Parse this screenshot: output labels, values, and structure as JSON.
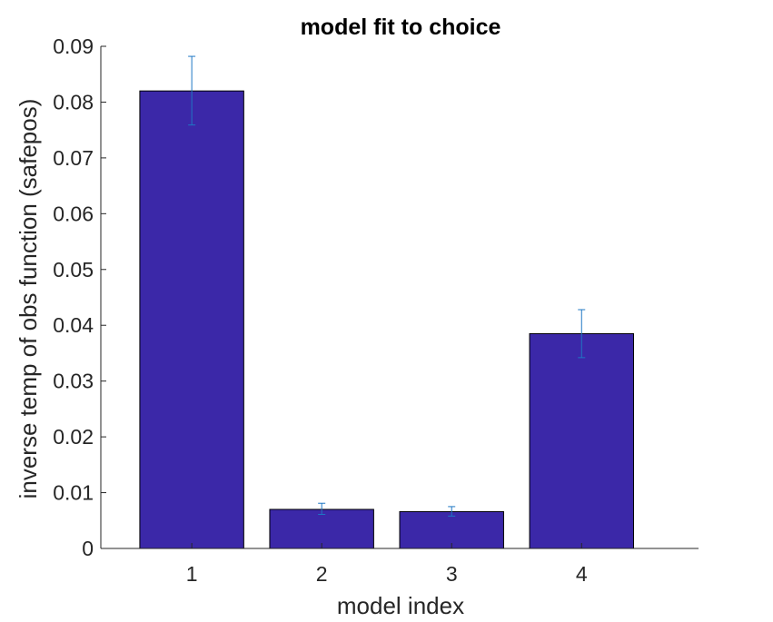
{
  "chart_data": {
    "type": "bar",
    "title": "model fit to choice",
    "xlabel": "model index",
    "ylabel": "inverse temp of obs function (safepos)",
    "categories": [
      "1",
      "2",
      "3",
      "4"
    ],
    "values": [
      0.082,
      0.007,
      0.0066,
      0.0385
    ],
    "error_low": [
      0.0759,
      0.0061,
      0.0058,
      0.0342
    ],
    "error_high": [
      0.0882,
      0.0081,
      0.0075,
      0.0428
    ],
    "ylim": [
      0,
      0.09
    ],
    "xlim": [
      0.3,
      4.9
    ],
    "yticks": [
      0,
      0.01,
      0.02,
      0.03,
      0.04,
      0.05,
      0.06,
      0.07,
      0.08,
      0.09
    ],
    "ytick_labels": [
      "0",
      "0.01",
      "0.02",
      "0.03",
      "0.04",
      "0.05",
      "0.06",
      "0.07",
      "0.08",
      "0.09"
    ],
    "grid": false,
    "colors": {
      "bar_fill": "#3b28a8",
      "bar_edge": "#000000",
      "error_bar": "#1f77c4",
      "axis": "#262626"
    }
  }
}
